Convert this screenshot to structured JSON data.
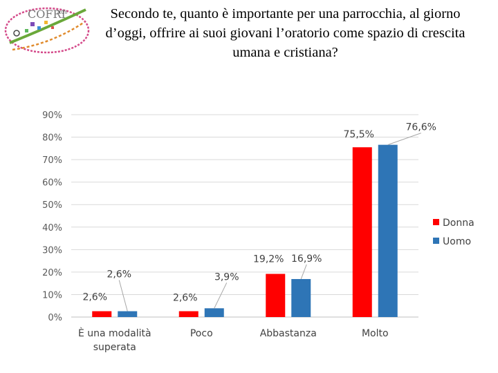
{
  "header": {
    "title": "Secondo te, quanto è importante per una parrocchia, al giorno d’oggi, offrire ai suoi giovani l’oratorio come spazio di crescita umana e cristiana?",
    "logo_text": "COFRI",
    "logo_small_text": "2020"
  },
  "chart_data": {
    "type": "bar",
    "title": "Secondo te, quanto è importante per una parrocchia, al giorno d’oggi, offrire ai suoi giovani l’oratorio come spazio di crescita umana e cristiana?",
    "categories": [
      "È una modalità superata",
      "Poco",
      "Abbastanza",
      "Molto"
    ],
    "series": [
      {
        "name": "Donna",
        "color": "#ff0000",
        "values": [
          2.6,
          2.6,
          19.2,
          75.5
        ],
        "labels": [
          "2,6%",
          "2,6%",
          "19,2%",
          "75,5%"
        ]
      },
      {
        "name": "Uomo",
        "color": "#2e75b6",
        "values": [
          2.6,
          3.9,
          16.9,
          76.6
        ],
        "labels": [
          "2,6%",
          "3,9%",
          "16,9%",
          "76,6%"
        ]
      }
    ],
    "ylim": [
      0,
      90
    ],
    "yticks": [
      0,
      10,
      20,
      30,
      40,
      50,
      60,
      70,
      80,
      90
    ],
    "ytick_labels": [
      "0%",
      "10%",
      "20%",
      "30%",
      "40%",
      "50%",
      "60%",
      "70%",
      "80%",
      "90%"
    ],
    "xlabel": "",
    "ylabel": "",
    "grid": true,
    "legend_position": "right"
  }
}
